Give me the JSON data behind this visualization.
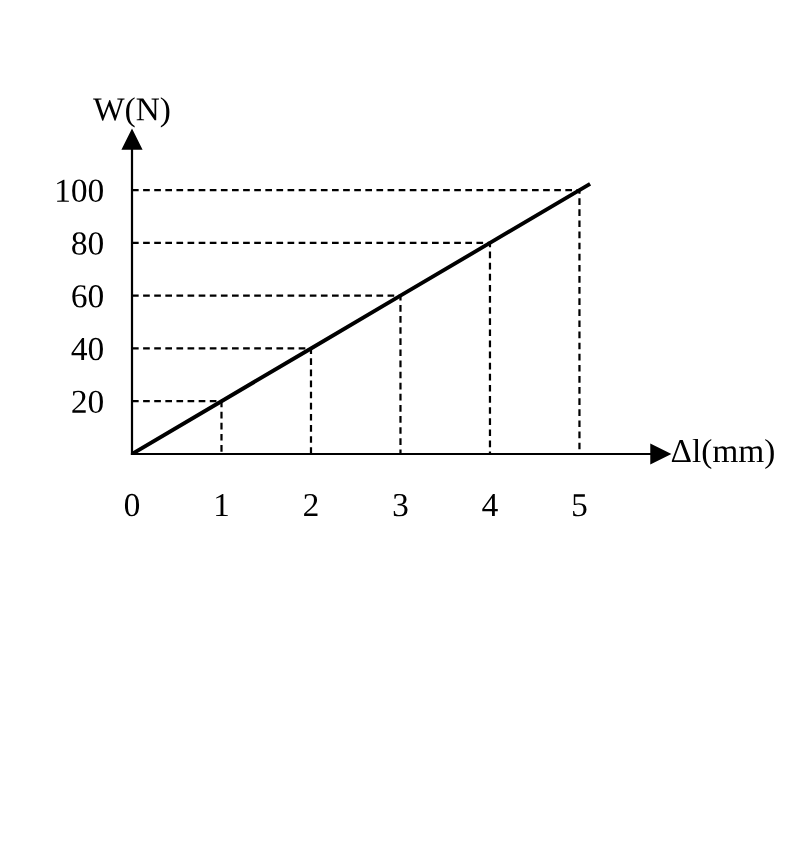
{
  "chart_data": {
    "type": "line",
    "xlabel": "Δl(mm)",
    "ylabel": "W(N)",
    "x": [
      0,
      1,
      2,
      3,
      4,
      5,
      5.1
    ],
    "series": [
      {
        "color": "#000000",
        "values": [
          0,
          20,
          40,
          60,
          80,
          100,
          102
        ],
        "line_style": "solid"
      },
      {
        "color": "#000000",
        "x": [
          0,
          1,
          1
        ],
        "values": [
          20,
          20,
          0
        ],
        "line_style": "dashed"
      },
      {
        "color": "#000000",
        "x": [
          0,
          2,
          2
        ],
        "values": [
          40,
          40,
          0
        ],
        "line_style": "dashed"
      },
      {
        "color": "#000000",
        "x": [
          0,
          3,
          3
        ],
        "values": [
          60,
          60,
          0
        ],
        "line_style": "dashed"
      },
      {
        "color": "#000000",
        "x": [
          0,
          4,
          4
        ],
        "values": [
          80,
          80,
          0
        ],
        "line_style": "dashed"
      },
      {
        "color": "#000000",
        "x": [
          0,
          5,
          5
        ],
        "values": [
          100,
          100,
          0
        ],
        "line_style": "dashed"
      }
    ],
    "xlim": [
      0,
      5.9
    ],
    "ylim": [
      0,
      119
    ],
    "xticks": [
      0,
      1,
      2,
      3,
      4,
      5
    ],
    "yticks": [
      20,
      40,
      60,
      80,
      100
    ]
  }
}
